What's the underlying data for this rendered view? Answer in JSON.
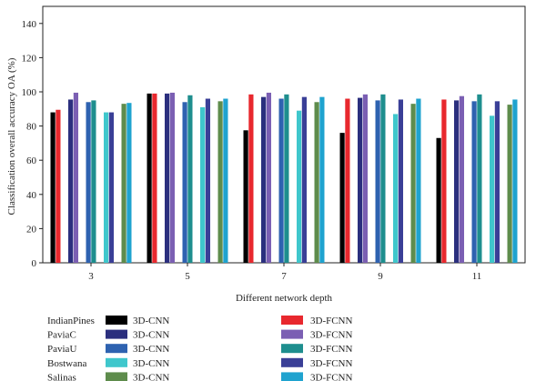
{
  "chart_data": {
    "type": "bar",
    "title": "",
    "xlabel": "Different network depth",
    "ylabel": "Classification overall accuracy OA (%)",
    "ylim": [
      0,
      150
    ],
    "yticks": [
      0,
      20,
      40,
      60,
      80,
      100,
      120,
      140
    ],
    "categories": [
      "3",
      "5",
      "7",
      "9",
      "11"
    ],
    "grid": false,
    "legend_position": "bottom",
    "series": [
      {
        "name": "IndianPines 3D-CNN",
        "dataset": "IndianPines",
        "model": "3D-CNN",
        "color": "#000000",
        "values": [
          88.0,
          99.0,
          77.5,
          76.0,
          73.0
        ]
      },
      {
        "name": "IndianPines 3D-FCNN",
        "dataset": "IndianPines",
        "model": "3D-FCNN",
        "color": "#e8282e",
        "values": [
          89.5,
          99.0,
          98.5,
          96.0,
          95.5
        ]
      },
      {
        "name": "PaviaC 3D-CNN",
        "dataset": "PaviaC",
        "model": "3D-CNN",
        "color": "#2b2f7e",
        "values": [
          95.5,
          99.0,
          97.0,
          96.5,
          95.0
        ]
      },
      {
        "name": "PaviaC 3D-FCNN",
        "dataset": "PaviaC",
        "model": "3D-FCNN",
        "color": "#7b5fb3",
        "values": [
          99.5,
          99.5,
          99.5,
          98.5,
          97.5
        ]
      },
      {
        "name": "PaviaU 3D-CNN",
        "dataset": "PaviaU",
        "model": "3D-CNN",
        "color": "#2e62b0",
        "values": [
          94.0,
          94.0,
          96.0,
          95.0,
          94.5
        ]
      },
      {
        "name": "PaviaU 3D-FCNN",
        "dataset": "PaviaU",
        "model": "3D-FCNN",
        "color": "#1e8e8e",
        "values": [
          95.0,
          98.0,
          98.5,
          98.5,
          98.5
        ]
      },
      {
        "name": "Bostwana 3D-CNN",
        "dataset": "Bostwana",
        "model": "3D-CNN",
        "color": "#3fc7cc",
        "values": [
          88.0,
          91.0,
          89.0,
          87.0,
          86.0
        ]
      },
      {
        "name": "Bostwana 3D-FCNN",
        "dataset": "Bostwana",
        "model": "3D-FCNN",
        "color": "#3a3f97",
        "values": [
          88.0,
          96.0,
          97.0,
          95.5,
          94.5
        ]
      },
      {
        "name": "Salinas 3D-CNN",
        "dataset": "Salinas",
        "model": "3D-CNN",
        "color": "#5e8c4c",
        "values": [
          93.0,
          94.5,
          94.0,
          93.0,
          92.5
        ]
      },
      {
        "name": "Salinas 3D-FCNN",
        "dataset": "Salinas",
        "model": "3D-FCNN",
        "color": "#1fa3cf",
        "values": [
          93.5,
          96.0,
          97.0,
          96.0,
          95.5
        ]
      }
    ],
    "legend_rows": [
      {
        "dataset": "IndianPines",
        "cnn_label": "3D-CNN",
        "fcnn_label": "3D-FCNN"
      },
      {
        "dataset": "PaviaC",
        "cnn_label": "3D-CNN",
        "fcnn_label": "3D-FCNN"
      },
      {
        "dataset": "PaviaU",
        "cnn_label": "3D-CNN",
        "fcnn_label": "3D-FCNN"
      },
      {
        "dataset": "Bostwana",
        "cnn_label": "3D-CNN",
        "fcnn_label": "3D-FCNN"
      },
      {
        "dataset": "Salinas",
        "cnn_label": "3D-CNN",
        "fcnn_label": "3D-FCNN"
      }
    ]
  }
}
